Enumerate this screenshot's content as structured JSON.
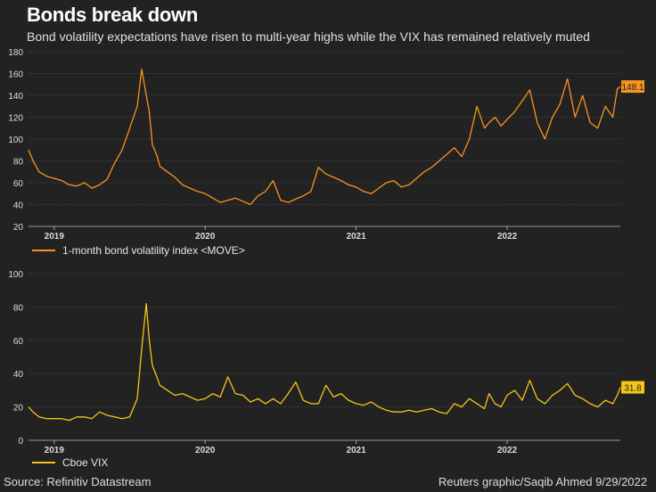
{
  "title": "Bonds break down",
  "subtitle": "Bond volatility expectations have risen to multi-year highs while the VIX has remained relatively muted",
  "source": "Source: Refinitiv Datastream",
  "credit": "Reuters graphic/Saqib Ahmed 9/29/2022",
  "chart_data": [
    {
      "type": "line",
      "series_name": "1-month bond volatility index <MOVE>",
      "color": "#f7931e",
      "last_value_label": "148.1",
      "ylim": [
        20,
        180
      ],
      "yticks": [
        20,
        40,
        60,
        80,
        100,
        120,
        140,
        160,
        180
      ],
      "xlim": [
        2018.83,
        2022.75
      ],
      "xticks": [
        {
          "label": "2019",
          "value": 2019.0
        },
        {
          "label": "2020",
          "value": 2020.0
        },
        {
          "label": "2021",
          "value": 2021.0
        },
        {
          "label": "2022",
          "value": 2022.0
        }
      ],
      "x": [
        2018.83,
        2018.86,
        2018.9,
        2018.95,
        2019.0,
        2019.05,
        2019.1,
        2019.15,
        2019.2,
        2019.25,
        2019.3,
        2019.35,
        2019.4,
        2019.45,
        2019.5,
        2019.55,
        2019.58,
        2019.61,
        2019.63,
        2019.65,
        2019.68,
        2019.7,
        2019.75,
        2019.8,
        2019.85,
        2019.9,
        2019.95,
        2020.0,
        2020.05,
        2020.1,
        2020.15,
        2020.2,
        2020.25,
        2020.3,
        2020.35,
        2020.4,
        2020.45,
        2020.5,
        2020.55,
        2020.6,
        2020.65,
        2020.7,
        2020.75,
        2020.8,
        2020.85,
        2020.9,
        2020.95,
        2021.0,
        2021.05,
        2021.1,
        2021.15,
        2021.2,
        2021.25,
        2021.3,
        2021.35,
        2021.4,
        2021.45,
        2021.5,
        2021.55,
        2021.6,
        2021.65,
        2021.7,
        2021.75,
        2021.8,
        2021.85,
        2021.88,
        2021.92,
        2021.96,
        2022.0,
        2022.05,
        2022.1,
        2022.15,
        2022.2,
        2022.25,
        2022.3,
        2022.35,
        2022.4,
        2022.45,
        2022.5,
        2022.55,
        2022.6,
        2022.65,
        2022.7,
        2022.73,
        2022.75
      ],
      "y": [
        90,
        80,
        70,
        66,
        64,
        62,
        58,
        57,
        60,
        55,
        58,
        63,
        78,
        90,
        110,
        130,
        164,
        140,
        125,
        95,
        85,
        75,
        70,
        65,
        58,
        55,
        52,
        50,
        46,
        42,
        44,
        46,
        43,
        40,
        48,
        52,
        62,
        44,
        42,
        45,
        48,
        52,
        74,
        68,
        65,
        62,
        58,
        56,
        52,
        50,
        55,
        60,
        62,
        56,
        58,
        64,
        70,
        74,
        80,
        86,
        92,
        84,
        100,
        130,
        110,
        115,
        120,
        112,
        118,
        125,
        135,
        145,
        115,
        100,
        120,
        132,
        155,
        120,
        140,
        115,
        110,
        130,
        120,
        146,
        148.1
      ]
    },
    {
      "type": "line",
      "series_name": "Cboe VIX",
      "color": "#f5c518",
      "last_value_label": "31.8",
      "ylim": [
        0,
        100
      ],
      "yticks": [
        0,
        20,
        40,
        60,
        80,
        100
      ],
      "xlim": [
        2018.83,
        2022.75
      ],
      "xticks": [
        {
          "label": "2019",
          "value": 2019.0
        },
        {
          "label": "2020",
          "value": 2020.0
        },
        {
          "label": "2021",
          "value": 2021.0
        },
        {
          "label": "2022",
          "value": 2022.0
        }
      ],
      "x": [
        2018.83,
        2018.86,
        2018.9,
        2018.95,
        2019.0,
        2019.05,
        2019.1,
        2019.15,
        2019.2,
        2019.25,
        2019.3,
        2019.35,
        2019.4,
        2019.45,
        2019.5,
        2019.55,
        2019.58,
        2019.61,
        2019.63,
        2019.65,
        2019.68,
        2019.7,
        2019.75,
        2019.8,
        2019.85,
        2019.9,
        2019.95,
        2020.0,
        2020.05,
        2020.1,
        2020.15,
        2020.2,
        2020.25,
        2020.3,
        2020.35,
        2020.4,
        2020.45,
        2020.5,
        2020.55,
        2020.6,
        2020.65,
        2020.7,
        2020.75,
        2020.8,
        2020.85,
        2020.9,
        2020.95,
        2021.0,
        2021.05,
        2021.1,
        2021.15,
        2021.2,
        2021.25,
        2021.3,
        2021.35,
        2021.4,
        2021.45,
        2021.5,
        2021.55,
        2021.6,
        2021.65,
        2021.7,
        2021.75,
        2021.8,
        2021.85,
        2021.88,
        2021.92,
        2021.96,
        2022.0,
        2022.05,
        2022.1,
        2022.15,
        2022.2,
        2022.25,
        2022.3,
        2022.35,
        2022.4,
        2022.45,
        2022.5,
        2022.55,
        2022.6,
        2022.65,
        2022.7,
        2022.73,
        2022.75
      ],
      "y": [
        20,
        17,
        14,
        13,
        13,
        13,
        12,
        14,
        14,
        13,
        17,
        15,
        14,
        13,
        14,
        25,
        55,
        82,
        60,
        45,
        38,
        33,
        30,
        27,
        28,
        26,
        24,
        25,
        28,
        26,
        38,
        28,
        27,
        23,
        25,
        22,
        25,
        22,
        28,
        35,
        24,
        22,
        22,
        33,
        26,
        28,
        24,
        22,
        21,
        23,
        20,
        18,
        17,
        17,
        18,
        17,
        18,
        19,
        17,
        16,
        22,
        20,
        25,
        22,
        19,
        28,
        22,
        20,
        27,
        30,
        24,
        36,
        25,
        22,
        27,
        30,
        34,
        27,
        25,
        22,
        20,
        24,
        22,
        27,
        31.8
      ]
    }
  ]
}
